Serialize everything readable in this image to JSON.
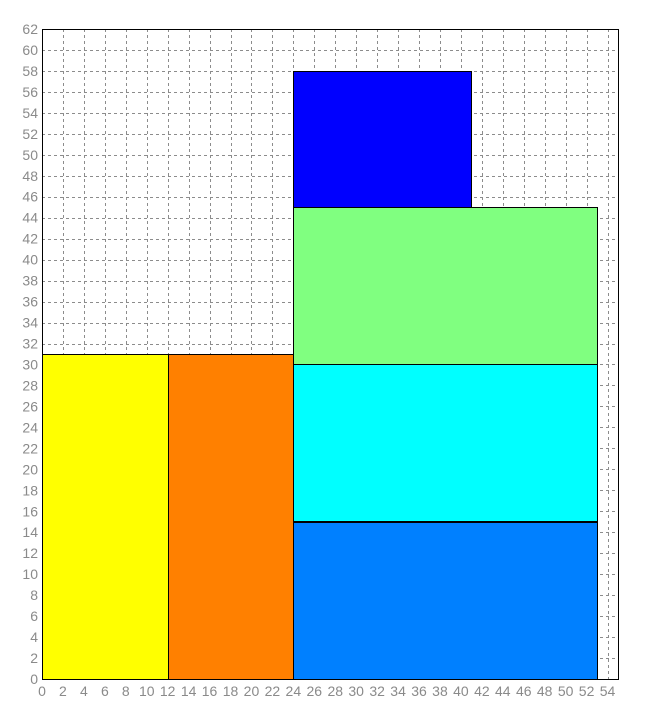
{
  "chart_data": {
    "type": "rectangles",
    "title": "",
    "xlabel": "",
    "ylabel": "",
    "xlim": [
      0,
      55
    ],
    "ylim": [
      0,
      62
    ],
    "x_tick_step": 2,
    "y_tick_step": 2,
    "x_ticks": [
      0,
      2,
      4,
      6,
      8,
      10,
      12,
      14,
      16,
      18,
      20,
      22,
      24,
      26,
      28,
      30,
      32,
      34,
      36,
      38,
      40,
      42,
      44,
      46,
      48,
      50,
      52,
      54
    ],
    "y_ticks": [
      0,
      2,
      4,
      6,
      8,
      10,
      12,
      14,
      16,
      18,
      20,
      22,
      24,
      26,
      28,
      30,
      32,
      34,
      36,
      38,
      40,
      42,
      44,
      46,
      48,
      50,
      52,
      54,
      56,
      58,
      60,
      62
    ],
    "grid": true,
    "rectangles": [
      {
        "x0": 0,
        "x1": 12,
        "y0": 0,
        "y1": 31,
        "color": "#ffff00"
      },
      {
        "x0": 12,
        "x1": 24,
        "y0": 0,
        "y1": 31,
        "color": "#ff8000"
      },
      {
        "x0": 24,
        "x1": 53,
        "y0": 0,
        "y1": 15,
        "color": "#0080ff"
      },
      {
        "x0": 24,
        "x1": 53,
        "y0": 15,
        "y1": 30,
        "color": "#00ffff"
      },
      {
        "x0": 24,
        "x1": 53,
        "y0": 30,
        "y1": 45,
        "color": "#80ff80"
      },
      {
        "x0": 24,
        "x1": 41,
        "y0": 45,
        "y1": 58,
        "color": "#0000ff"
      }
    ]
  }
}
